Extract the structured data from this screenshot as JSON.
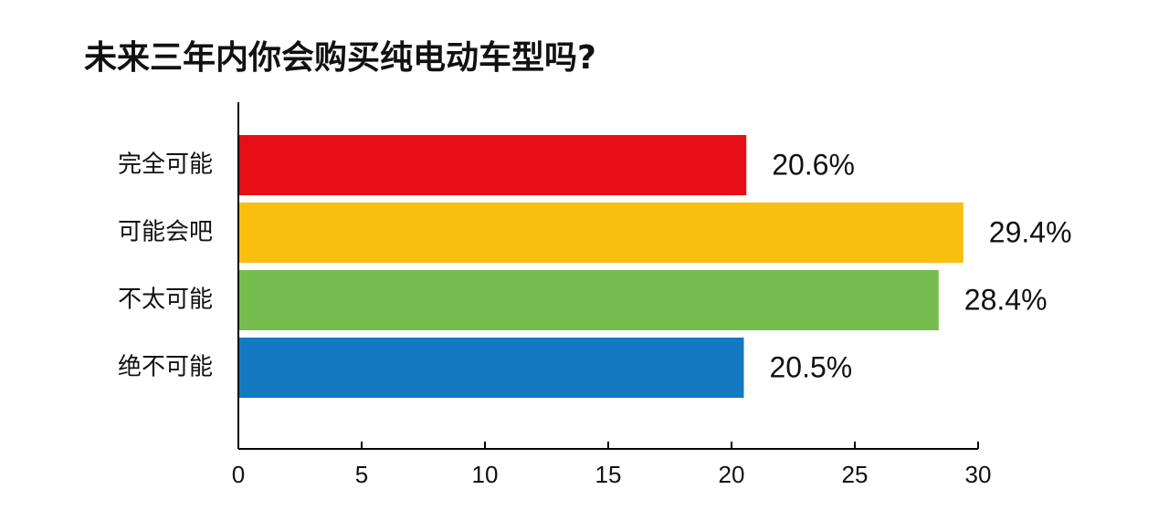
{
  "chart_data": {
    "type": "bar",
    "orientation": "horizontal",
    "title": "未来三年内你会购买纯电动车型吗?",
    "categories": [
      "完全可能",
      "可能会吧",
      "不太可能",
      "绝不可能"
    ],
    "values": [
      20.6,
      29.4,
      28.4,
      20.5
    ],
    "value_labels": [
      "20.6%",
      "29.4%",
      "28.4%",
      "20.5%"
    ],
    "colors": [
      "#e60f16",
      "#f8bf0f",
      "#76bd4f",
      "#1579c1"
    ],
    "xlim": [
      0,
      30
    ],
    "xticks": [
      0,
      5,
      10,
      15,
      20,
      25,
      30
    ],
    "grid": false
  }
}
